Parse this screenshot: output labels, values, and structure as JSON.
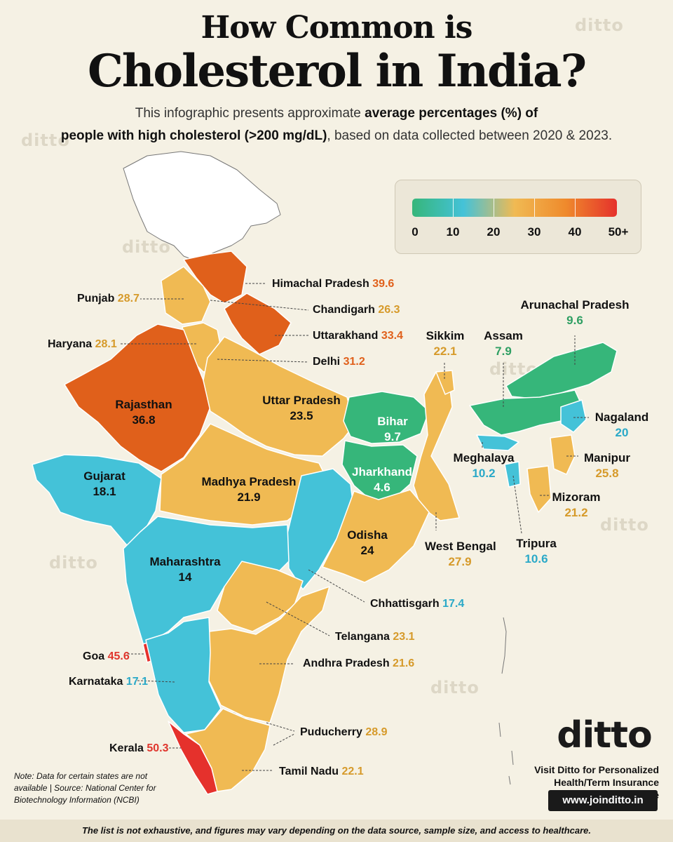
{
  "title_line1": "How Common is",
  "title_line2": "Cholesterol in India?",
  "subtitle": {
    "pre": "This infographic presents approximate ",
    "bold1": "average percentages (%) of",
    "bold2": "people with high cholesterol (>200 mg/dL)",
    "post": ", based on data collected between 2020 & 2023."
  },
  "watermark": "ditto",
  "legend": {
    "ticks": [
      "0",
      "10",
      "20",
      "30",
      "40",
      "50+"
    ],
    "colors": [
      "#36b67a",
      "#44c2d8",
      "#f0ba53",
      "#ef8a2c",
      "#e5312c"
    ]
  },
  "states": {
    "himachal": {
      "name": "Himachal Pradesh",
      "value": "39.6"
    },
    "punjab": {
      "name": "Punjab",
      "value": "28.7"
    },
    "chandigarh": {
      "name": "Chandigarh",
      "value": "26.3"
    },
    "uttarakhand": {
      "name": "Uttarakhand",
      "value": "33.4"
    },
    "haryana": {
      "name": "Haryana",
      "value": "28.1"
    },
    "delhi": {
      "name": "Delhi",
      "value": "31.2"
    },
    "rajasthan": {
      "name": "Rajasthan",
      "value": "36.8"
    },
    "uttar_pradesh": {
      "name": "Uttar Pradesh",
      "value": "23.5"
    },
    "bihar": {
      "name": "Bihar",
      "value": "9.7"
    },
    "jharkhand": {
      "name": "Jharkhand",
      "value": "4.6"
    },
    "gujarat": {
      "name": "Gujarat",
      "value": "18.1"
    },
    "madhya_pradesh": {
      "name": "Madhya Pradesh",
      "value": "21.9"
    },
    "maharashtra": {
      "name": "Maharashtra",
      "value": "14"
    },
    "odisha": {
      "name": "Odisha",
      "value": "24"
    },
    "chhattisgarh": {
      "name": "Chhattisgarh",
      "value": "17.4"
    },
    "telangana": {
      "name": "Telangana",
      "value": "23.1"
    },
    "andhra": {
      "name": "Andhra Pradesh",
      "value": "21.6"
    },
    "goa": {
      "name": "Goa",
      "value": "45.6"
    },
    "karnataka": {
      "name": "Karnataka",
      "value": "17.1"
    },
    "puducherry": {
      "name": "Puducherry",
      "value": "28.9"
    },
    "kerala": {
      "name": "Kerala",
      "value": "50.3"
    },
    "tamil_nadu": {
      "name": "Tamil Nadu",
      "value": "22.1"
    },
    "arunachal": {
      "name": "Arunachal Pradesh",
      "value": "9.6"
    },
    "sikkim": {
      "name": "Sikkim",
      "value": "22.1"
    },
    "assam": {
      "name": "Assam",
      "value": "7.9"
    },
    "nagaland": {
      "name": "Nagaland",
      "value": "20"
    },
    "meghalaya": {
      "name": "Meghalaya",
      "value": "10.2"
    },
    "manipur": {
      "name": "Manipur",
      "value": "25.8"
    },
    "mizoram": {
      "name": "Mizoram",
      "value": "21.2"
    },
    "west_bengal": {
      "name": "West Bengal",
      "value": "27.9"
    },
    "tripura": {
      "name": "Tripura",
      "value": "10.6"
    }
  },
  "brand": {
    "logo": "ditto",
    "tagline_line1": "Visit Ditto for Personalized",
    "tagline_line2": "Health/Term Insurance Advice",
    "url": "www.joinditto.in"
  },
  "note": "Note: Data for certain states are not available | Source: National Center for Biotechnology Information (NCBI)",
  "footer": "The list is not exhaustive, and figures may vary depending on the data source, sample size, and access to healthcare."
}
